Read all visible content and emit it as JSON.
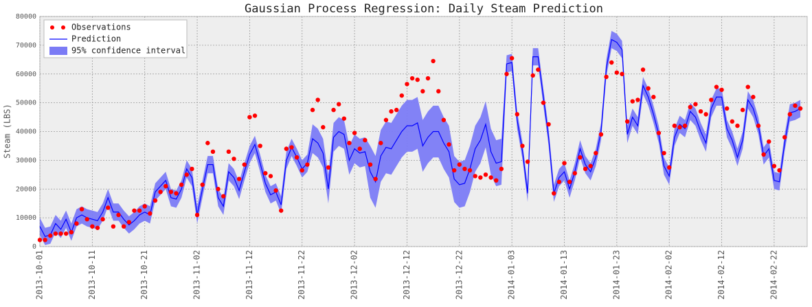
{
  "chart_data": {
    "type": "line",
    "title": "Gaussian Process Regression: Daily Steam Prediction",
    "y_label": "Steam (LBS)",
    "categories": [
      "2013-10-01",
      null,
      null,
      null,
      null,
      null,
      null,
      null,
      null,
      null,
      "2013-10-11",
      null,
      null,
      null,
      null,
      null,
      null,
      null,
      null,
      null,
      "2013-10-21",
      null,
      null,
      null,
      null,
      null,
      null,
      null,
      null,
      null,
      "2013-11-02",
      null,
      null,
      null,
      null,
      null,
      null,
      null,
      null,
      null,
      "2013-11-12",
      null,
      null,
      null,
      null,
      null,
      null,
      null,
      null,
      null,
      "2013-11-22",
      null,
      null,
      null,
      null,
      null,
      null,
      null,
      null,
      null,
      "2013-12-02",
      null,
      null,
      null,
      null,
      null,
      null,
      null,
      null,
      null,
      "2013-12-12",
      null,
      null,
      null,
      null,
      null,
      null,
      null,
      null,
      null,
      "2013-12-22",
      null,
      null,
      null,
      null,
      null,
      null,
      null,
      null,
      null,
      "2014-01-03",
      null,
      null,
      null,
      null,
      null,
      null,
      null,
      null,
      null,
      "2014-01-13",
      null,
      null,
      null,
      null,
      null,
      null,
      null,
      null,
      null,
      "2014-01-23",
      null,
      null,
      null,
      null,
      null,
      null,
      null,
      null,
      null,
      "2014-02-02",
      null,
      null,
      null,
      null,
      null,
      null,
      null,
      null,
      null,
      "2014-02-12",
      null,
      null,
      null,
      null,
      null,
      null,
      null,
      null,
      null,
      "2014-02-22",
      null,
      null,
      null,
      null,
      null
    ],
    "series": [
      {
        "name": "Observations",
        "kind": "scatter",
        "color": "#ff0000",
        "values": [
          2300,
          2300,
          3800,
          4500,
          4500,
          4500,
          5000,
          8000,
          13000,
          9500,
          7000,
          6500,
          9500,
          13500,
          7000,
          11000,
          7000,
          8500,
          12500,
          12500,
          14000,
          11500,
          16000,
          19000,
          21000,
          19000,
          18500,
          21500,
          25000,
          27000,
          11000,
          21500,
          36000,
          33000,
          20000,
          17500,
          33000,
          30500,
          23500,
          28500,
          45000,
          45500,
          35000,
          25500,
          24500,
          19500,
          12500,
          34000,
          34500,
          31000,
          26500,
          28500,
          47500,
          51000,
          41500,
          27500,
          47500,
          49500,
          44500,
          36000,
          39500,
          34000,
          37000,
          28500,
          23500,
          36000,
          44000,
          47000,
          47500,
          52500,
          56500,
          58500,
          58000,
          54000,
          58500,
          64500,
          54000,
          44000,
          35500,
          26500,
          28500,
          27000,
          26500,
          24500,
          24000,
          25000,
          24000,
          23000,
          27000,
          60000,
          65500,
          46000,
          35000,
          29500,
          59500,
          61500,
          50000,
          42500,
          18500,
          22500,
          29000,
          22500,
          25500,
          31000,
          27000,
          28000,
          32500,
          39000,
          59000,
          64000,
          60500,
          60000,
          43500,
          50500,
          51000,
          61500,
          55000,
          52000,
          39500,
          32500,
          27500,
          42000,
          41500,
          42000,
          48500,
          49500,
          47000,
          46000,
          51000,
          55500,
          54500,
          48000,
          43500,
          42000,
          47500,
          55500,
          52000,
          42000,
          32000,
          36500,
          28000,
          26500,
          38000,
          46000,
          49000,
          48000
        ]
      },
      {
        "name": "Prediction",
        "kind": "line",
        "color": "#0000ff",
        "values": [
          7000,
          3500,
          4000,
          8000,
          6000,
          9500,
          5000,
          10000,
          11000,
          10000,
          9500,
          9000,
          12000,
          17000,
          12000,
          12000,
          9500,
          7500,
          9000,
          11000,
          12000,
          11000,
          19000,
          21000,
          23000,
          17000,
          16500,
          20000,
          27000,
          24000,
          11000,
          20000,
          28500,
          28500,
          17000,
          14000,
          26000,
          24000,
          19500,
          26000,
          32000,
          35500,
          29000,
          22000,
          18000,
          19000,
          14500,
          30000,
          34500,
          31000,
          27000,
          29000,
          37500,
          36000,
          32500,
          20000,
          38000,
          40000,
          39000,
          30000,
          34000,
          32500,
          33000,
          26000,
          22500,
          31500,
          34500,
          34000,
          37000,
          40000,
          42000,
          42000,
          43000,
          35000,
          38000,
          40000,
          40000,
          36000,
          33000,
          23500,
          21500,
          22000,
          27000,
          34000,
          37000,
          42500,
          33000,
          29000,
          29500,
          63500,
          64000,
          44000,
          33500,
          18500,
          66000,
          66000,
          52000,
          38000,
          18500,
          24000,
          26000,
          20000,
          26000,
          34000,
          28500,
          26000,
          31000,
          40000,
          62000,
          72000,
          71000,
          68500,
          39000,
          45000,
          42000,
          56000,
          52000,
          46000,
          39000,
          28000,
          24500,
          38000,
          42500,
          41000,
          47000,
          45000,
          40000,
          36000,
          48000,
          52000,
          52000,
          41000,
          37000,
          31000,
          37000,
          51000,
          48000,
          42000,
          31500,
          34000,
          23000,
          22500,
          36000,
          46500,
          47000,
          48000
        ]
      },
      {
        "name": "95% confidence interval",
        "kind": "band",
        "color": "#7b7bf5",
        "lower": [
          4000,
          500,
          1000,
          5000,
          3000,
          6500,
          2000,
          7000,
          8000,
          7000,
          6500,
          6000,
          9000,
          14000,
          9000,
          9000,
          6500,
          4500,
          6000,
          8000,
          9000,
          8000,
          16000,
          18000,
          20000,
          14000,
          13500,
          17000,
          24000,
          21000,
          8000,
          17000,
          25500,
          25500,
          14000,
          11000,
          23000,
          21000,
          16500,
          23000,
          29000,
          32500,
          26000,
          19000,
          15000,
          16000,
          11500,
          27000,
          31500,
          28000,
          24000,
          26000,
          32500,
          31000,
          27500,
          15000,
          33000,
          35000,
          34000,
          25000,
          29000,
          27500,
          28000,
          17000,
          13500,
          22500,
          25500,
          25000,
          28000,
          31000,
          33000,
          33000,
          34000,
          26000,
          29000,
          31000,
          31000,
          27000,
          24000,
          15500,
          13500,
          14000,
          19000,
          26000,
          29000,
          34500,
          25000,
          21000,
          21500,
          60500,
          61000,
          41000,
          30500,
          15500,
          63000,
          63000,
          49000,
          35000,
          15500,
          21000,
          23000,
          17000,
          23000,
          31000,
          25500,
          23000,
          28000,
          37000,
          59000,
          69000,
          68000,
          65500,
          36000,
          42000,
          39000,
          53000,
          49000,
          43000,
          36000,
          25000,
          21500,
          35000,
          39500,
          38000,
          44000,
          42000,
          37000,
          33000,
          45000,
          49000,
          49000,
          38000,
          34000,
          28000,
          34000,
          48000,
          45000,
          39000,
          28500,
          31000,
          20000,
          19500,
          33000,
          43500,
          44000,
          45000
        ],
        "upper": [
          10000,
          6500,
          7000,
          11000,
          9000,
          12500,
          8000,
          13000,
          14000,
          13000,
          12500,
          12000,
          15000,
          20000,
          15000,
          15000,
          12500,
          10500,
          12000,
          14000,
          15000,
          14000,
          22000,
          24000,
          26000,
          20000,
          19500,
          23000,
          30000,
          27000,
          14000,
          23000,
          31500,
          31500,
          20000,
          17000,
          29000,
          27000,
          22500,
          29000,
          35000,
          38500,
          32000,
          25000,
          21000,
          22000,
          17500,
          33000,
          37500,
          34000,
          30000,
          32000,
          42500,
          41000,
          37500,
          25000,
          43000,
          45000,
          44000,
          35000,
          39000,
          37500,
          38000,
          35000,
          31500,
          40500,
          43500,
          43000,
          46000,
          49000,
          51000,
          51000,
          52000,
          44000,
          47000,
          49000,
          49000,
          45000,
          42000,
          31500,
          29500,
          30000,
          35000,
          42000,
          45000,
          50500,
          41000,
          37000,
          37500,
          66500,
          67000,
          47000,
          36500,
          21500,
          69000,
          69000,
          55000,
          41000,
          21500,
          27000,
          29000,
          23000,
          29000,
          37000,
          31500,
          29000,
          34000,
          43000,
          65000,
          75000,
          74000,
          71500,
          42000,
          48000,
          45000,
          59000,
          55000,
          49000,
          42000,
          31000,
          27500,
          41000,
          45500,
          44000,
          50000,
          48000,
          43000,
          39000,
          51000,
          55000,
          55000,
          44000,
          40000,
          34000,
          40000,
          54000,
          51000,
          45000,
          34500,
          37000,
          26000,
          25500,
          39000,
          49500,
          50000,
          51000
        ]
      }
    ],
    "ylim": [
      0,
      80000
    ],
    "yticks": [
      0,
      10000,
      20000,
      30000,
      40000,
      50000,
      60000,
      70000,
      80000
    ],
    "grid": true,
    "legend": "upper left"
  }
}
